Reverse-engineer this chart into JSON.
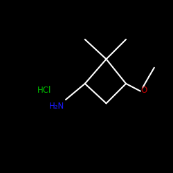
{
  "background_color": "#000000",
  "bond_color": "#ffffff",
  "atom_colors": {
    "NH2": "#1a1aff",
    "O": "#cc0000",
    "HCl": "#00bb00"
  },
  "lw": 1.5,
  "fontsize": 8.5,
  "hcl_text": "HCl",
  "nh2_text": "H₂N",
  "o_text": "O"
}
